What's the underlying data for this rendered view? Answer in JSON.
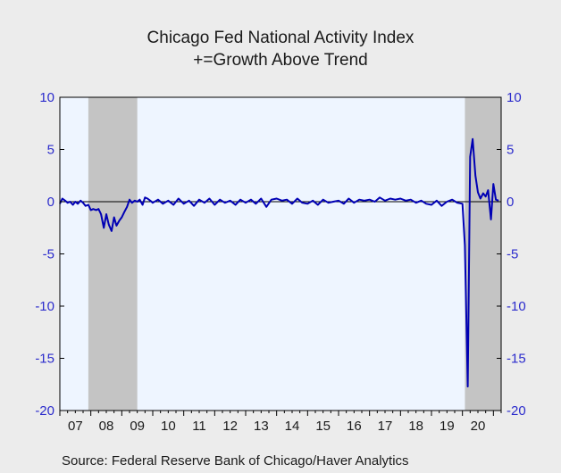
{
  "chart_data": {
    "type": "line",
    "title": "Chicago Fed National Activity Index",
    "subtitle": "+=Growth Above Trend",
    "xlabel": "",
    "ylabel": "",
    "ylim": [
      -20,
      10
    ],
    "yticks": [
      "10",
      "5",
      "0",
      "-5",
      "-10",
      "-15",
      "-20"
    ],
    "xticks": [
      "07",
      "08",
      "09",
      "10",
      "11",
      "12",
      "13",
      "14",
      "15",
      "16",
      "17",
      "18",
      "19",
      "20"
    ],
    "x_range": [
      2007.0,
      2021.25
    ],
    "recessions": [
      [
        2007.92,
        2009.5
      ],
      [
        2020.08,
        2021.25
      ]
    ],
    "grid": false,
    "zero_line": true,
    "colors": {
      "line": "#0000b4",
      "plot_bg": "#eef5ff",
      "recession": "#c4c4c4",
      "axis_text": "#2b2bcc"
    },
    "series": [
      {
        "x": [
          2007.0,
          2007.08,
          2007.17,
          2007.25,
          2007.33,
          2007.42,
          2007.5,
          2007.58,
          2007.67,
          2007.75,
          2007.83,
          2007.92,
          2008.0,
          2008.08,
          2008.17,
          2008.25,
          2008.33,
          2008.42,
          2008.5,
          2008.58,
          2008.67,
          2008.75,
          2008.83,
          2008.92,
          2009.0,
          2009.08,
          2009.17,
          2009.25,
          2009.33,
          2009.42,
          2009.5,
          2009.58,
          2009.67,
          2009.75,
          2009.83,
          2009.92,
          2010.0,
          2010.17,
          2010.33,
          2010.5,
          2010.67,
          2010.83,
          2011.0,
          2011.17,
          2011.33,
          2011.5,
          2011.67,
          2011.83,
          2012.0,
          2012.17,
          2012.33,
          2012.5,
          2012.67,
          2012.83,
          2013.0,
          2013.17,
          2013.33,
          2013.5,
          2013.67,
          2013.83,
          2014.0,
          2014.17,
          2014.33,
          2014.5,
          2014.67,
          2014.83,
          2015.0,
          2015.17,
          2015.33,
          2015.5,
          2015.67,
          2015.83,
          2016.0,
          2016.17,
          2016.33,
          2016.5,
          2016.67,
          2016.83,
          2017.0,
          2017.17,
          2017.33,
          2017.5,
          2017.67,
          2017.83,
          2018.0,
          2018.17,
          2018.33,
          2018.5,
          2018.67,
          2018.83,
          2019.0,
          2019.17,
          2019.33,
          2019.5,
          2019.67,
          2019.83,
          2020.0,
          2020.08,
          2020.17,
          2020.25,
          2020.33,
          2020.42,
          2020.5,
          2020.58,
          2020.67,
          2020.75,
          2020.83,
          2020.92,
          2021.0,
          2021.08,
          2021.17
        ],
        "values": [
          -0.2,
          0.3,
          0.1,
          -0.1,
          0.0,
          -0.3,
          0.0,
          -0.2,
          0.1,
          -0.1,
          -0.4,
          -0.3,
          -0.8,
          -0.7,
          -0.8,
          -0.7,
          -1.2,
          -2.5,
          -1.2,
          -2.2,
          -2.8,
          -1.5,
          -2.3,
          -1.8,
          -1.5,
          -1.0,
          -0.5,
          0.2,
          -0.1,
          0.1,
          0.0,
          0.2,
          -0.3,
          0.4,
          0.3,
          0.1,
          -0.1,
          0.2,
          -0.2,
          0.1,
          -0.3,
          0.3,
          -0.2,
          0.1,
          -0.4,
          0.2,
          -0.1,
          0.3,
          -0.3,
          0.2,
          -0.1,
          0.1,
          -0.3,
          0.2,
          -0.1,
          0.2,
          -0.2,
          0.3,
          -0.5,
          0.2,
          0.3,
          0.1,
          0.2,
          -0.2,
          0.3,
          -0.1,
          -0.2,
          0.1,
          -0.3,
          0.2,
          -0.1,
          0.0,
          0.1,
          -0.2,
          0.3,
          -0.1,
          0.2,
          0.1,
          0.2,
          0.0,
          0.4,
          0.1,
          0.3,
          0.2,
          0.3,
          0.1,
          0.2,
          -0.1,
          0.1,
          -0.2,
          -0.3,
          0.1,
          -0.4,
          0.0,
          0.2,
          -0.1,
          -0.2,
          -4.2,
          -17.7,
          4.3,
          6.0,
          2.5,
          0.9,
          0.3,
          0.8,
          0.5,
          1.1,
          -1.7,
          1.7,
          0.2,
          0.1
        ]
      }
    ]
  },
  "source": "Source:  Federal Reserve Bank of Chicago/Haver Analytics"
}
